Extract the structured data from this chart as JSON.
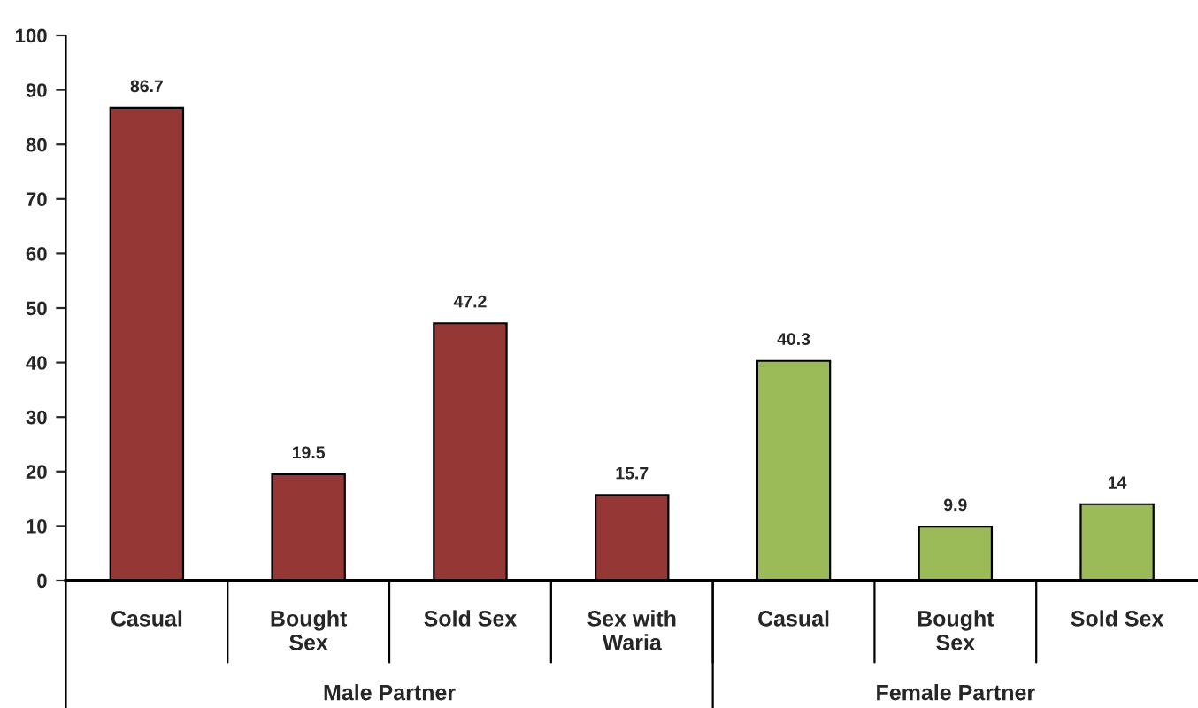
{
  "chart_data": {
    "type": "bar",
    "categories": [
      "Casual",
      "Bought\nSex",
      "Sold Sex",
      "Sex with\nWaria",
      "Casual",
      "Bought\nSex",
      "Sold Sex"
    ],
    "series": [
      {
        "color": "#953735",
        "values": [
          86.7,
          19.5,
          47.2,
          15.7,
          null,
          null,
          null
        ]
      },
      {
        "color": "#9bbb59",
        "values": [
          null,
          null,
          null,
          null,
          40.3,
          9.9,
          14
        ]
      }
    ],
    "annotations": [
      "Male Partner",
      "Female Partner"
    ],
    "ylim": [
      0,
      100
    ],
    "yticks": [
      0,
      10,
      20,
      30,
      40,
      50,
      60,
      70,
      80,
      90,
      100
    ],
    "data_labels": true,
    "grid": false,
    "legend": false
  }
}
